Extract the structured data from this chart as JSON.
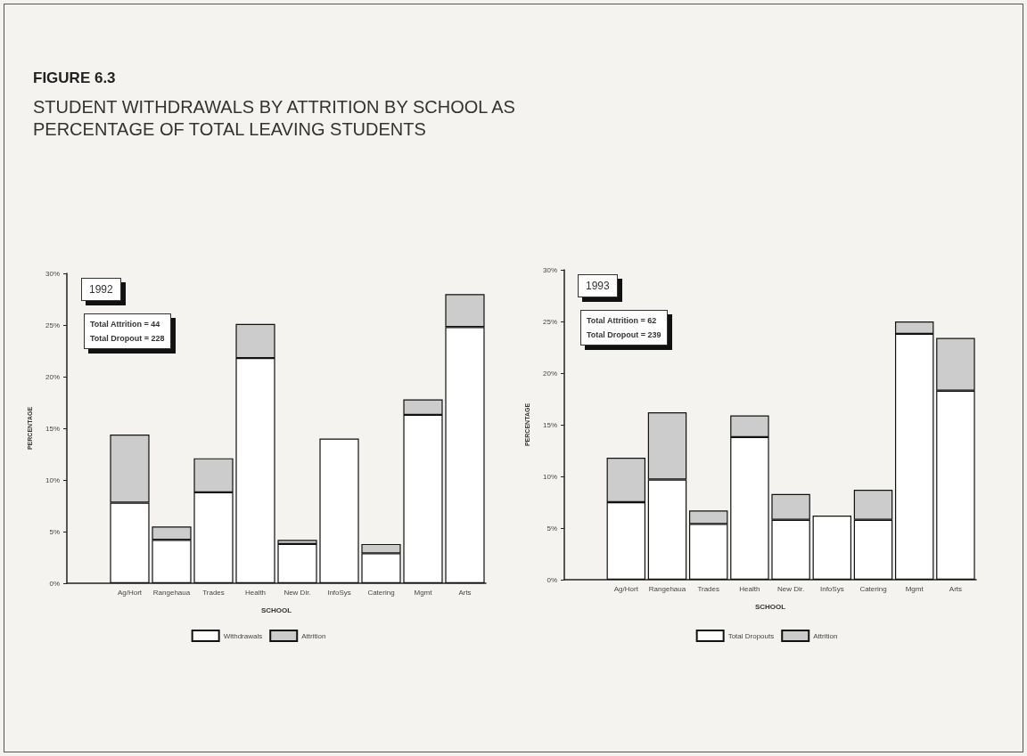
{
  "chart_data": [
    {
      "type": "bar",
      "title": "FIGURE 6.3",
      "subtitle": "STUDENT WITHDRAWALS BY ATTRITION BY SCHOOL AS PERCENTAGE OF TOTAL LEAVING STUDENTS",
      "xlabel": "SCHOOL",
      "ylabel": "PERCENTAGE",
      "stacked": true,
      "legend": "bottom",
      "grid": false,
      "categories": [
        null,
        "Ag/Hort",
        "Rangehaua",
        "Trades",
        "Health",
        "New Dir.",
        "InfoSys",
        "Catering",
        "Mgmt",
        "Arts"
      ],
      "series": [
        {
          "name": "Withdrawals",
          "color": "#ffffff",
          "values": [
            null,
            7.8,
            4.2,
            8.8,
            21.8,
            3.8,
            14.0,
            2.9,
            16.3,
            24.8
          ]
        },
        {
          "name": "Attrition",
          "color": "#cccccc",
          "values": [
            null,
            6.6,
            1.3,
            3.3,
            3.3,
            0.4,
            null,
            0.9,
            1.5,
            3.2
          ]
        }
      ],
      "ylim": [
        0,
        30
      ],
      "yticks": [
        {
          "value": 0,
          "label": "0%"
        },
        {
          "value": 5,
          "label": "5%"
        },
        {
          "value": 10,
          "label": "10%"
        },
        {
          "value": 15,
          "label": "15%"
        },
        {
          "value": 20,
          "label": "20%"
        },
        {
          "value": 25,
          "label": "25%"
        },
        {
          "value": 30,
          "label": "30%"
        }
      ],
      "annotations": [
        "1992",
        "Total Attrition = 44",
        "Total Dropout = 228"
      ]
    },
    {
      "type": "bar",
      "xlabel": "SCHOOL",
      "ylabel": "PERCENTAGE",
      "stacked": true,
      "legend": "bottom",
      "grid": false,
      "categories": [
        null,
        "Ag/Hort",
        "Rangehaua",
        "Trades",
        "Health",
        "New Dir.",
        "InfoSys",
        "Catering",
        "Mgmt",
        "Arts"
      ],
      "series": [
        {
          "name": "Total Dropouts",
          "color": "#ffffff",
          "values": [
            null,
            7.5,
            9.7,
            5.4,
            13.8,
            5.8,
            6.2,
            5.8,
            23.8,
            18.3
          ]
        },
        {
          "name": "Attrition",
          "color": "#cccccc",
          "values": [
            null,
            4.3,
            6.5,
            1.3,
            2.1,
            2.5,
            null,
            2.9,
            1.2,
            5.1
          ]
        }
      ],
      "ylim": [
        0,
        30
      ],
      "yticks": [
        {
          "value": 0,
          "label": "0%"
        },
        {
          "value": 5,
          "label": "5%"
        },
        {
          "value": 10,
          "label": "10%"
        },
        {
          "value": 15,
          "label": "15%"
        },
        {
          "value": 20,
          "label": "20%"
        },
        {
          "value": 25,
          "label": "25%"
        },
        {
          "value": 30,
          "label": "30%"
        }
      ],
      "annotations": [
        "1993",
        "Total Attrition = 62",
        "Total Dropout = 239"
      ]
    }
  ]
}
